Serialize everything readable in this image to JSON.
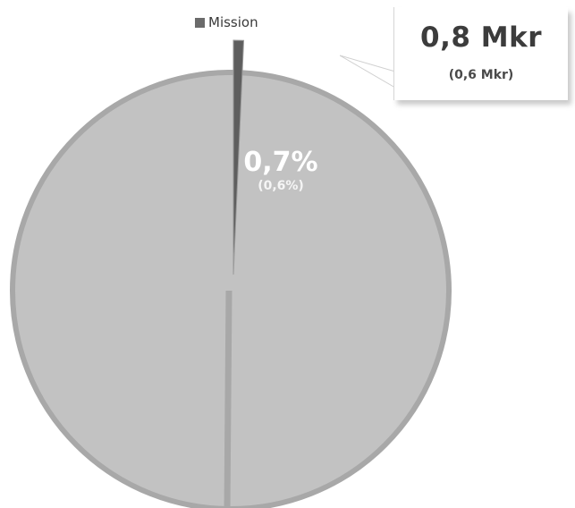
{
  "chart_data": {
    "type": "pie",
    "title": "",
    "slices": [
      {
        "name": "Mission",
        "value": 0.7,
        "label": "0,7%",
        "previous_label": "(0,6%)",
        "color": "#5e5e5e"
      },
      {
        "name": "",
        "value": 99.3,
        "color": "#c2c2c2"
      }
    ],
    "legend": {
      "entries": [
        "Mission"
      ],
      "placement": "top"
    },
    "callout": {
      "value": "0,8 Mkr",
      "previous": "(0,6 Mkr)"
    }
  }
}
